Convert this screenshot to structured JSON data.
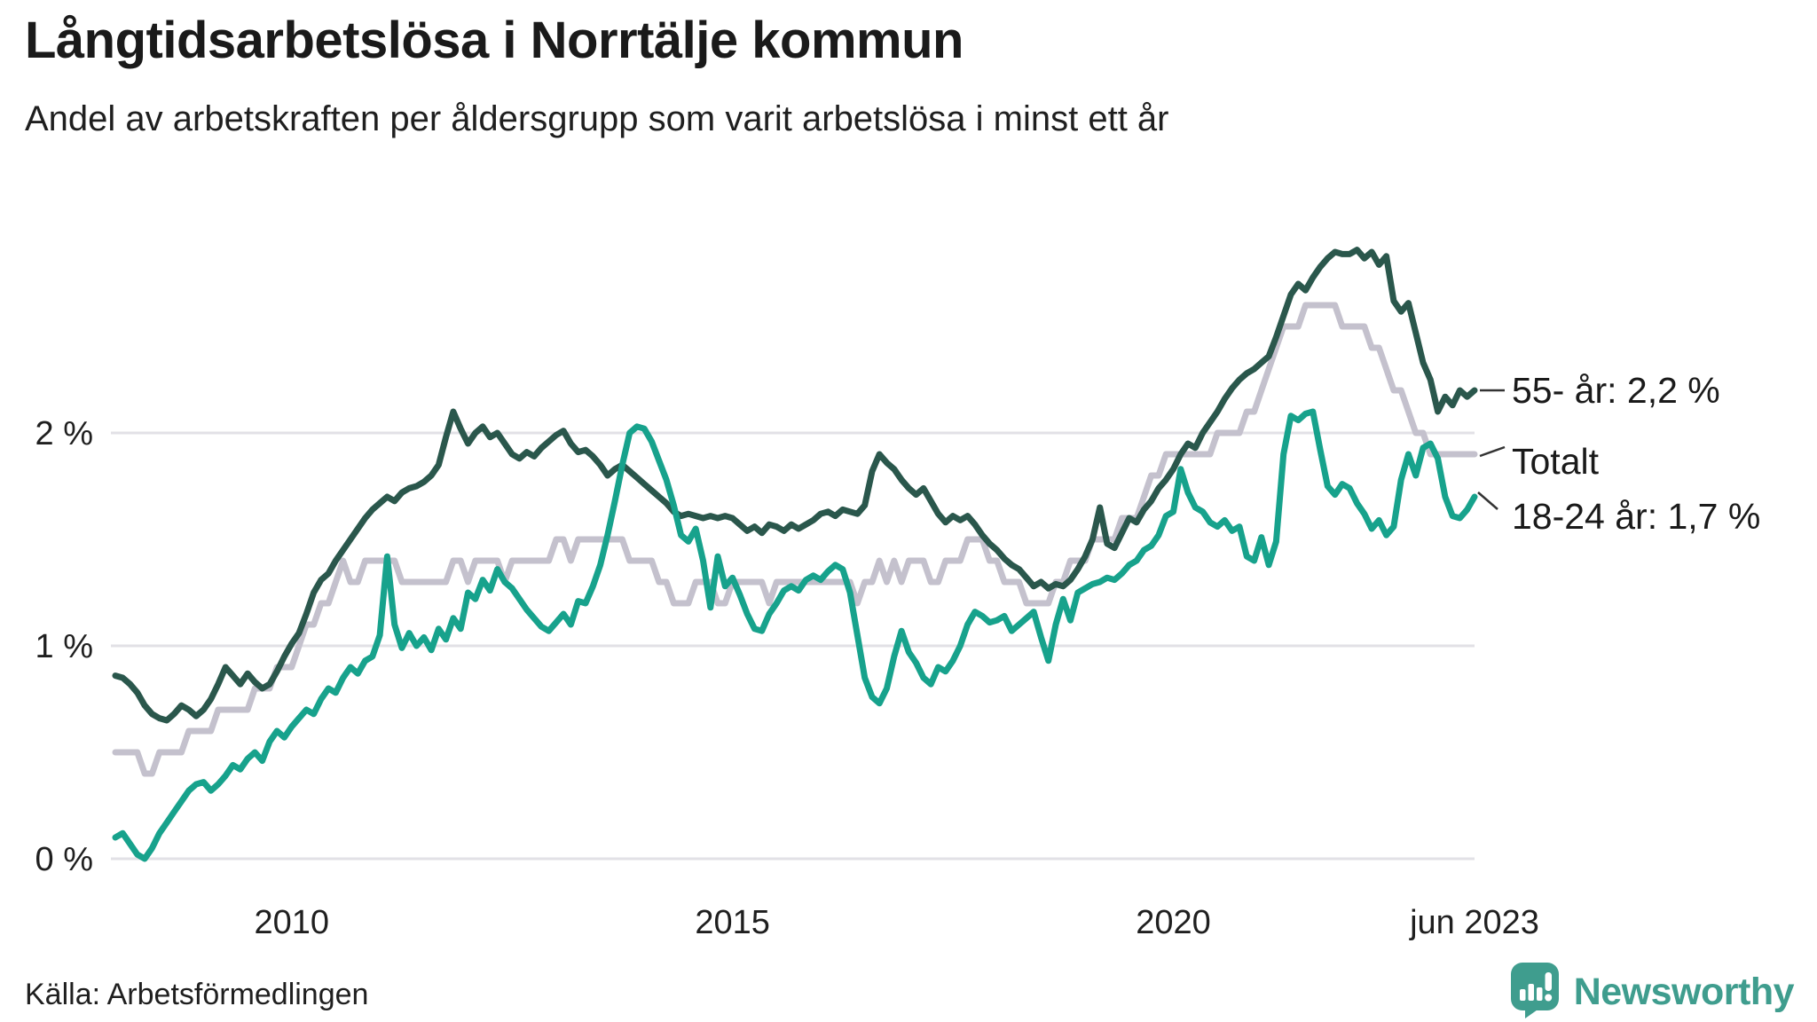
{
  "header": {
    "title": "Långtidsarbetslösa i Norrtälje kommun",
    "subtitle": "Andel av arbetskraften per åldersgrupp som varit arbetslösa i minst ett år"
  },
  "footer": {
    "source": "Källa: Arbetsförmedlingen",
    "brand": "Newsworthy",
    "brand_color": "#3f9d8e"
  },
  "chart_data": {
    "type": "line",
    "title": "Långtidsarbetslösa i Norrtälje kommun",
    "subtitle": "Andel av arbetskraften per åldersgrupp som varit arbetslösa i minst ett år",
    "x_start": "2008-01",
    "x_end": "2023-06",
    "points_per_year": 12,
    "ylim": [
      0,
      3.2
    ],
    "grid": "horizontal-only",
    "grid_color": "#e2e1e6",
    "y_ticks": [
      {
        "value": 2,
        "label": "2 %"
      },
      {
        "value": 1,
        "label": "1 %"
      },
      {
        "value": 0,
        "label": "0 %"
      }
    ],
    "x_ticks": [
      {
        "index": 24,
        "label": "2010"
      },
      {
        "index": 84,
        "label": "2015"
      },
      {
        "index": 144,
        "label": "2020"
      },
      {
        "index": 185,
        "label": "jun 2023"
      }
    ],
    "series": [
      {
        "id": "totalt",
        "name": "Totalt",
        "end_label": "Totalt",
        "color": "#c4c1cd",
        "final_value": 1.9,
        "values": [
          0.5,
          0.5,
          0.5,
          0.5,
          0.4,
          0.4,
          0.5,
          0.5,
          0.5,
          0.5,
          0.6,
          0.6,
          0.6,
          0.6,
          0.7,
          0.7,
          0.7,
          0.7,
          0.7,
          0.8,
          0.8,
          0.8,
          0.9,
          0.9,
          0.9,
          1.0,
          1.1,
          1.1,
          1.2,
          1.2,
          1.3,
          1.4,
          1.3,
          1.3,
          1.4,
          1.4,
          1.4,
          1.4,
          1.4,
          1.3,
          1.3,
          1.3,
          1.3,
          1.3,
          1.3,
          1.3,
          1.4,
          1.4,
          1.3,
          1.4,
          1.4,
          1.4,
          1.4,
          1.3,
          1.4,
          1.4,
          1.4,
          1.4,
          1.4,
          1.4,
          1.5,
          1.5,
          1.4,
          1.5,
          1.5,
          1.5,
          1.5,
          1.5,
          1.5,
          1.5,
          1.4,
          1.4,
          1.4,
          1.4,
          1.3,
          1.3,
          1.2,
          1.2,
          1.2,
          1.3,
          1.3,
          1.3,
          1.2,
          1.2,
          1.3,
          1.3,
          1.3,
          1.3,
          1.3,
          1.2,
          1.3,
          1.3,
          1.3,
          1.3,
          1.3,
          1.3,
          1.3,
          1.3,
          1.3,
          1.3,
          1.3,
          1.2,
          1.3,
          1.3,
          1.4,
          1.3,
          1.4,
          1.3,
          1.4,
          1.4,
          1.4,
          1.3,
          1.3,
          1.4,
          1.4,
          1.4,
          1.5,
          1.5,
          1.5,
          1.4,
          1.4,
          1.3,
          1.3,
          1.3,
          1.2,
          1.2,
          1.2,
          1.2,
          1.3,
          1.3,
          1.4,
          1.4,
          1.4,
          1.5,
          1.5,
          1.5,
          1.5,
          1.6,
          1.6,
          1.6,
          1.7,
          1.8,
          1.8,
          1.9,
          1.9,
          1.9,
          1.9,
          1.9,
          1.9,
          1.9,
          2.0,
          2.0,
          2.0,
          2.0,
          2.1,
          2.1,
          2.2,
          2.3,
          2.4,
          2.5,
          2.5,
          2.5,
          2.6,
          2.6,
          2.6,
          2.6,
          2.6,
          2.5,
          2.5,
          2.5,
          2.5,
          2.4,
          2.4,
          2.3,
          2.2,
          2.2,
          2.1,
          2.0,
          2.0,
          1.9,
          1.9,
          1.9,
          1.9,
          1.9,
          1.9,
          1.9
        ]
      },
      {
        "id": "a55",
        "name": "55- år",
        "end_label": "55- år: 2,2 %",
        "color": "#2a574c",
        "final_value": 2.2,
        "values": [
          0.86,
          0.85,
          0.82,
          0.78,
          0.72,
          0.68,
          0.66,
          0.65,
          0.68,
          0.72,
          0.7,
          0.67,
          0.7,
          0.75,
          0.82,
          0.9,
          0.86,
          0.82,
          0.87,
          0.83,
          0.8,
          0.82,
          0.88,
          0.95,
          1.01,
          1.06,
          1.15,
          1.25,
          1.31,
          1.34,
          1.4,
          1.45,
          1.5,
          1.55,
          1.6,
          1.64,
          1.67,
          1.7,
          1.68,
          1.72,
          1.74,
          1.75,
          1.77,
          1.8,
          1.85,
          1.98,
          2.1,
          2.02,
          1.95,
          2.0,
          2.03,
          1.98,
          2.0,
          1.95,
          1.9,
          1.88,
          1.91,
          1.89,
          1.93,
          1.96,
          1.99,
          2.01,
          1.95,
          1.91,
          1.92,
          1.89,
          1.85,
          1.8,
          1.83,
          1.85,
          1.82,
          1.79,
          1.76,
          1.73,
          1.7,
          1.67,
          1.63,
          1.61,
          1.62,
          1.61,
          1.6,
          1.61,
          1.6,
          1.61,
          1.6,
          1.57,
          1.54,
          1.56,
          1.53,
          1.57,
          1.56,
          1.54,
          1.57,
          1.55,
          1.57,
          1.59,
          1.62,
          1.63,
          1.61,
          1.64,
          1.63,
          1.62,
          1.66,
          1.82,
          1.9,
          1.86,
          1.83,
          1.78,
          1.74,
          1.71,
          1.74,
          1.68,
          1.62,
          1.58,
          1.61,
          1.59,
          1.61,
          1.57,
          1.52,
          1.48,
          1.45,
          1.41,
          1.38,
          1.36,
          1.32,
          1.28,
          1.3,
          1.27,
          1.29,
          1.28,
          1.31,
          1.36,
          1.42,
          1.5,
          1.65,
          1.48,
          1.46,
          1.53,
          1.6,
          1.58,
          1.64,
          1.68,
          1.74,
          1.78,
          1.83,
          1.9,
          1.95,
          1.93,
          2.0,
          2.05,
          2.1,
          2.16,
          2.21,
          2.25,
          2.28,
          2.3,
          2.33,
          2.36,
          2.45,
          2.55,
          2.65,
          2.7,
          2.67,
          2.73,
          2.78,
          2.82,
          2.85,
          2.84,
          2.84,
          2.86,
          2.82,
          2.85,
          2.79,
          2.83,
          2.62,
          2.57,
          2.61,
          2.47,
          2.33,
          2.25,
          2.1,
          2.17,
          2.13,
          2.2,
          2.17,
          2.2
        ]
      },
      {
        "id": "a1824",
        "name": "18-24 år",
        "end_label": "18-24 år: 1,7 %",
        "color": "#17a28c",
        "final_value": 1.7,
        "values": [
          0.1,
          0.12,
          0.07,
          0.02,
          0.0,
          0.05,
          0.12,
          0.17,
          0.22,
          0.27,
          0.32,
          0.35,
          0.36,
          0.32,
          0.35,
          0.39,
          0.44,
          0.42,
          0.47,
          0.5,
          0.46,
          0.55,
          0.6,
          0.57,
          0.62,
          0.66,
          0.7,
          0.68,
          0.75,
          0.8,
          0.78,
          0.85,
          0.9,
          0.87,
          0.93,
          0.95,
          1.05,
          1.42,
          1.1,
          0.99,
          1.06,
          1.0,
          1.04,
          0.98,
          1.08,
          1.03,
          1.13,
          1.08,
          1.25,
          1.22,
          1.31,
          1.26,
          1.36,
          1.3,
          1.27,
          1.22,
          1.17,
          1.13,
          1.09,
          1.07,
          1.11,
          1.15,
          1.1,
          1.21,
          1.2,
          1.28,
          1.38,
          1.52,
          1.68,
          1.85,
          2.0,
          2.03,
          2.02,
          1.96,
          1.87,
          1.78,
          1.66,
          1.52,
          1.49,
          1.55,
          1.4,
          1.18,
          1.42,
          1.28,
          1.32,
          1.24,
          1.15,
          1.08,
          1.07,
          1.15,
          1.2,
          1.26,
          1.28,
          1.26,
          1.31,
          1.33,
          1.31,
          1.35,
          1.38,
          1.36,
          1.25,
          1.05,
          0.85,
          0.76,
          0.73,
          0.8,
          0.95,
          1.07,
          0.97,
          0.92,
          0.85,
          0.82,
          0.9,
          0.88,
          0.93,
          1.0,
          1.1,
          1.16,
          1.14,
          1.11,
          1.12,
          1.14,
          1.07,
          1.1,
          1.13,
          1.16,
          1.04,
          0.93,
          1.1,
          1.22,
          1.12,
          1.25,
          1.27,
          1.29,
          1.3,
          1.32,
          1.31,
          1.34,
          1.38,
          1.4,
          1.45,
          1.47,
          1.52,
          1.61,
          1.63,
          1.83,
          1.72,
          1.65,
          1.63,
          1.58,
          1.56,
          1.59,
          1.54,
          1.56,
          1.42,
          1.4,
          1.51,
          1.38,
          1.49,
          1.9,
          2.08,
          2.06,
          2.09,
          2.1,
          1.92,
          1.75,
          1.71,
          1.76,
          1.74,
          1.67,
          1.62,
          1.55,
          1.59,
          1.52,
          1.56,
          1.78,
          1.9,
          1.8,
          1.93,
          1.95,
          1.88,
          1.7,
          1.61,
          1.6,
          1.64,
          1.7
        ]
      }
    ]
  }
}
